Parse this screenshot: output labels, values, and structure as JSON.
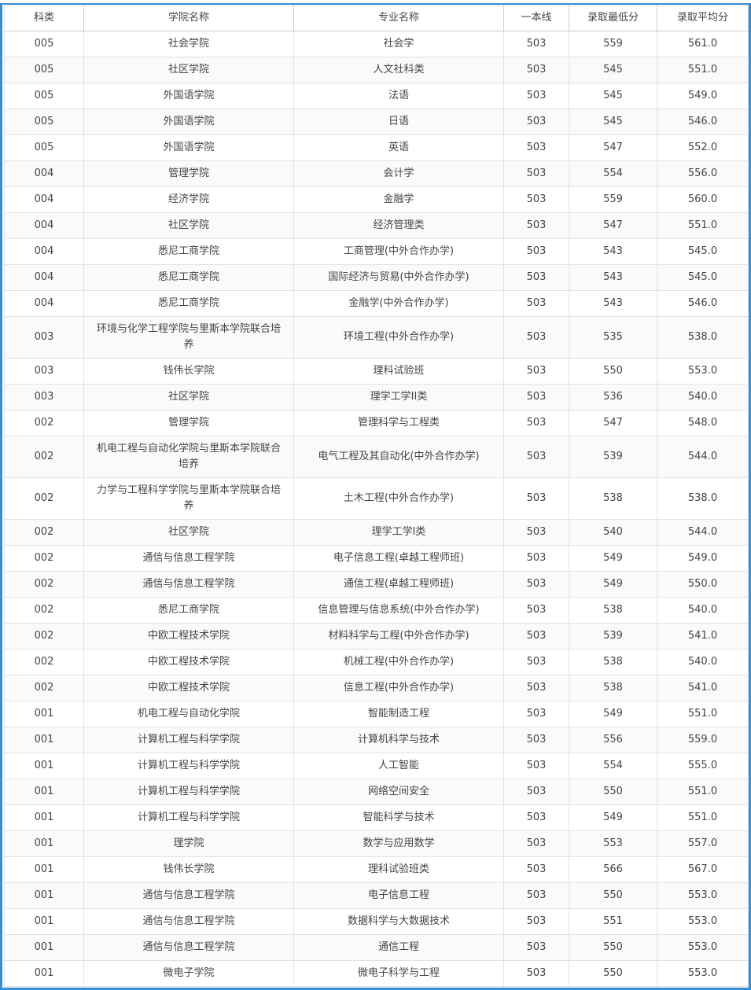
{
  "table": {
    "headers": [
      "科类",
      "学院名称",
      "专业名称",
      "一本线",
      "录取最低分",
      "录取平均分"
    ],
    "rows": [
      [
        "005",
        "社会学院",
        "社会学",
        "503",
        "559",
        "561.0"
      ],
      [
        "005",
        "社区学院",
        "人文社科类",
        "503",
        "545",
        "551.0"
      ],
      [
        "005",
        "外国语学院",
        "法语",
        "503",
        "545",
        "549.0"
      ],
      [
        "005",
        "外国语学院",
        "日语",
        "503",
        "545",
        "546.0"
      ],
      [
        "005",
        "外国语学院",
        "英语",
        "503",
        "547",
        "552.0"
      ],
      [
        "004",
        "管理学院",
        "会计学",
        "503",
        "554",
        "556.0"
      ],
      [
        "004",
        "经济学院",
        "金融学",
        "503",
        "559",
        "560.0"
      ],
      [
        "004",
        "社区学院",
        "经济管理类",
        "503",
        "547",
        "551.0"
      ],
      [
        "004",
        "悉尼工商学院",
        "工商管理(中外合作办学)",
        "503",
        "543",
        "545.0"
      ],
      [
        "004",
        "悉尼工商学院",
        "国际经济与贸易(中外合作办学)",
        "503",
        "543",
        "545.0"
      ],
      [
        "004",
        "悉尼工商学院",
        "金融学(中外合作办学)",
        "503",
        "543",
        "546.0"
      ],
      [
        "003",
        "环境与化学工程学院与里斯本学院联合培养",
        "环境工程(中外合作办学)",
        "503",
        "535",
        "538.0"
      ],
      [
        "003",
        "钱伟长学院",
        "理科试验班",
        "503",
        "550",
        "553.0"
      ],
      [
        "003",
        "社区学院",
        "理学工学II类",
        "503",
        "536",
        "540.0"
      ],
      [
        "002",
        "管理学院",
        "管理科学与工程类",
        "503",
        "547",
        "548.0"
      ],
      [
        "002",
        "机电工程与自动化学院与里斯本学院联合培养",
        "电气工程及其自动化(中外合作办学)",
        "503",
        "539",
        "544.0"
      ],
      [
        "002",
        "力学与工程科学学院与里斯本学院联合培养",
        "土木工程(中外合作办学)",
        "503",
        "538",
        "538.0"
      ],
      [
        "002",
        "社区学院",
        "理学工学I类",
        "503",
        "540",
        "544.0"
      ],
      [
        "002",
        "通信与信息工程学院",
        "电子信息工程(卓越工程师班)",
        "503",
        "549",
        "549.0"
      ],
      [
        "002",
        "通信与信息工程学院",
        "通信工程(卓越工程师班)",
        "503",
        "549",
        "550.0"
      ],
      [
        "002",
        "悉尼工商学院",
        "信息管理与信息系统(中外合作办学)",
        "503",
        "538",
        "540.0"
      ],
      [
        "002",
        "中欧工程技术学院",
        "材料科学与工程(中外合作办学)",
        "503",
        "539",
        "541.0"
      ],
      [
        "002",
        "中欧工程技术学院",
        "机械工程(中外合作办学)",
        "503",
        "538",
        "540.0"
      ],
      [
        "002",
        "中欧工程技术学院",
        "信息工程(中外合作办学)",
        "503",
        "538",
        "541.0"
      ],
      [
        "001",
        "机电工程与自动化学院",
        "智能制造工程",
        "503",
        "549",
        "551.0"
      ],
      [
        "001",
        "计算机工程与科学学院",
        "计算机科学与技术",
        "503",
        "556",
        "559.0"
      ],
      [
        "001",
        "计算机工程与科学学院",
        "人工智能",
        "503",
        "554",
        "555.0"
      ],
      [
        "001",
        "计算机工程与科学学院",
        "网络空间安全",
        "503",
        "550",
        "551.0"
      ],
      [
        "001",
        "计算机工程与科学学院",
        "智能科学与技术",
        "503",
        "549",
        "551.0"
      ],
      [
        "001",
        "理学院",
        "数学与应用数学",
        "503",
        "553",
        "557.0"
      ],
      [
        "001",
        "钱伟长学院",
        "理科试验班类",
        "503",
        "566",
        "567.0"
      ],
      [
        "001",
        "通信与信息工程学院",
        "电子信息工程",
        "503",
        "550",
        "553.0"
      ],
      [
        "001",
        "通信与信息工程学院",
        "数据科学与大数据技术",
        "503",
        "551",
        "553.0"
      ],
      [
        "001",
        "通信与信息工程学院",
        "通信工程",
        "503",
        "550",
        "553.0"
      ],
      [
        "001",
        "微电子学院",
        "微电子科学与工程",
        "503",
        "550",
        "553.0"
      ]
    ]
  }
}
